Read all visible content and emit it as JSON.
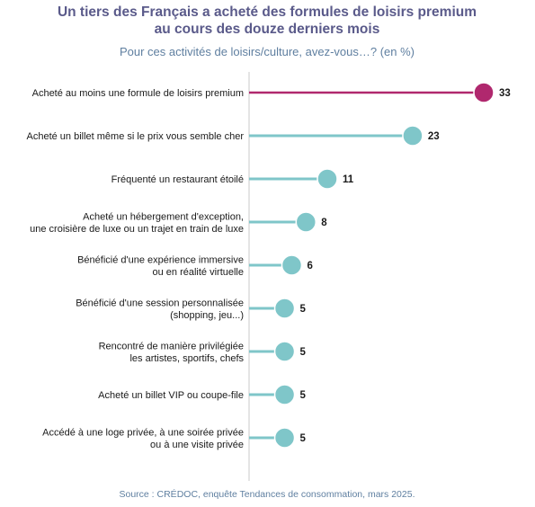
{
  "colors": {
    "title": "#5a5a8a",
    "subtitle": "#5f7fa0",
    "highlight": "#b0286e",
    "lollipop": "#7fc6c9",
    "axis": "#c9c9c9",
    "source": "#5f7fa0"
  },
  "chart_data": {
    "type": "bar",
    "style": "lollipop-horizontal",
    "title": "Un tiers des Français a acheté des formules de loisirs premium au cours des douze derniers mois",
    "title_lines": [
      "Un tiers des Français a acheté des formules de loisirs premium",
      "au cours des douze derniers mois"
    ],
    "subtitle": "Pour ces activités de loisirs/culture, avez-vous…? (en %)",
    "source": "Source : CRÉDOC, enquête Tendances de consommation, mars 2025.",
    "categories": [
      [
        "Acheté au moins une formule de loisirs premium"
      ],
      [
        "Acheté un billet même si le prix vous semble cher"
      ],
      [
        "Fréquenté un restaurant étoilé"
      ],
      [
        "Acheté un hébergement d'exception,",
        "une croisière de luxe ou un trajet en train de luxe"
      ],
      [
        "Bénéficié d'une expérience immersive",
        "ou en réalité virtuelle"
      ],
      [
        "Bénéficié d'une session personnalisée",
        "(shopping, jeu...)"
      ],
      [
        "Rencontré de manière privilégiée",
        "les artistes, sportifs, chefs"
      ],
      [
        "Acheté un billet VIP ou coupe-file"
      ],
      [
        "Accédé à une loge privée, à une soirée privée",
        "ou à une visite privée"
      ]
    ],
    "values": [
      33,
      23,
      11,
      8,
      6,
      5,
      5,
      5,
      5
    ],
    "highlight_index": 0,
    "xlim": [
      0,
      33
    ]
  }
}
